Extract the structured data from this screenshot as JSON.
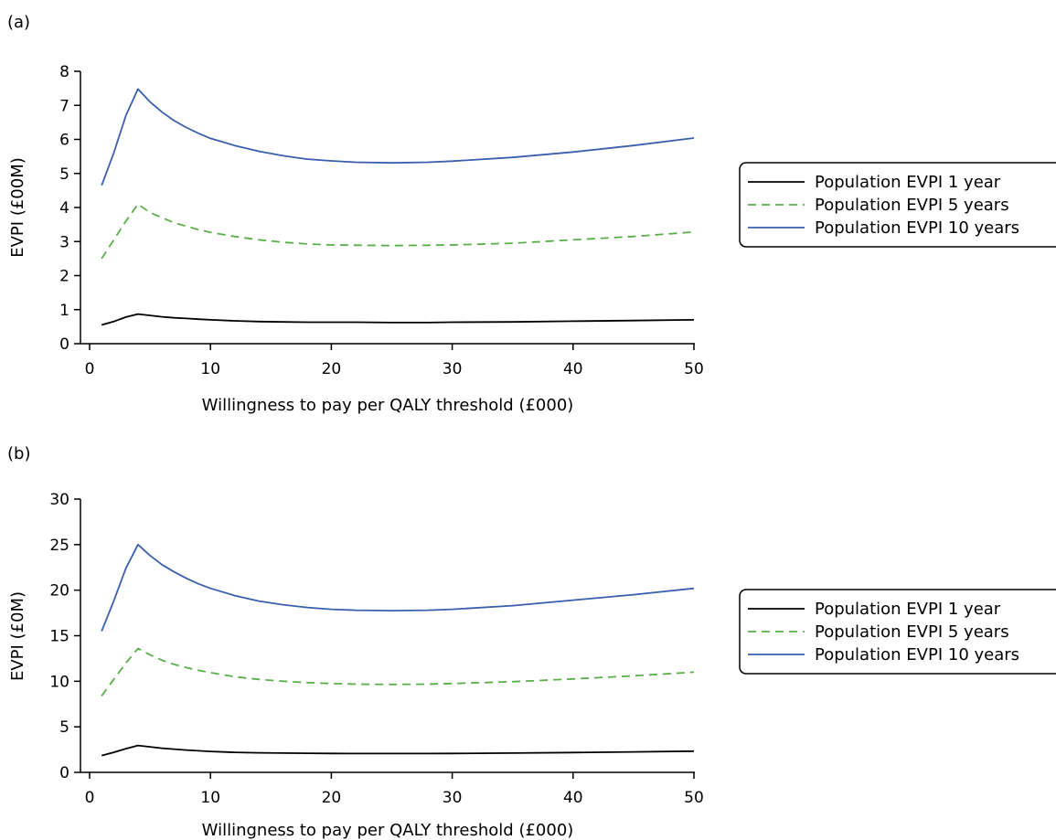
{
  "chart_data": [
    {
      "type": "line",
      "panel_label": "(a)",
      "xlabel": "Willingness to pay per QALY threshold (£000)",
      "ylabel": "EVPI (£00M)",
      "xlim": [
        0,
        50
      ],
      "ylim": [
        0,
        8
      ],
      "xticks": [
        "0",
        "10",
        "20",
        "30",
        "40",
        "50"
      ],
      "yticks": [
        "0",
        "1",
        "2",
        "3",
        "4",
        "5",
        "6",
        "7",
        "8"
      ],
      "grid": false,
      "legend_position": "right",
      "x": [
        1,
        2,
        3,
        4,
        5,
        6,
        7,
        8,
        9,
        10,
        12,
        14,
        16,
        18,
        20,
        22,
        25,
        28,
        30,
        35,
        40,
        45,
        50
      ],
      "series": [
        {
          "name": "Population EVPI 1 year",
          "color": "#000000",
          "dash": "solid",
          "values": [
            0.55,
            0.65,
            0.78,
            0.87,
            0.83,
            0.79,
            0.76,
            0.74,
            0.72,
            0.7,
            0.67,
            0.65,
            0.64,
            0.63,
            0.63,
            0.63,
            0.62,
            0.62,
            0.63,
            0.64,
            0.66,
            0.68,
            0.7
          ]
        },
        {
          "name": "Population EVPI 5 years",
          "color": "#5aae4a",
          "dash": "dashed",
          "values": [
            2.5,
            3.05,
            3.6,
            4.1,
            3.85,
            3.7,
            3.55,
            3.45,
            3.35,
            3.27,
            3.15,
            3.05,
            2.98,
            2.93,
            2.9,
            2.89,
            2.88,
            2.89,
            2.9,
            2.95,
            3.05,
            3.15,
            3.28
          ]
        },
        {
          "name": "Population EVPI 10 years",
          "color": "#3a5fad",
          "dash": "solid",
          "values": [
            4.65,
            5.6,
            6.7,
            7.48,
            7.1,
            6.8,
            6.55,
            6.35,
            6.18,
            6.03,
            5.82,
            5.65,
            5.52,
            5.42,
            5.37,
            5.33,
            5.31,
            5.33,
            5.36,
            5.47,
            5.63,
            5.82,
            6.04
          ]
        }
      ]
    },
    {
      "type": "line",
      "panel_label": "(b)",
      "xlabel": "Willingness to pay per QALY threshold (£000)",
      "ylabel": "EVPI (£0M)",
      "xlim": [
        0,
        50
      ],
      "ylim": [
        0,
        30
      ],
      "xticks": [
        "0",
        "10",
        "20",
        "30",
        "40",
        "50"
      ],
      "yticks": [
        "0",
        "5",
        "10",
        "15",
        "20",
        "25",
        "30"
      ],
      "grid": false,
      "legend_position": "right",
      "x": [
        1,
        2,
        3,
        4,
        5,
        6,
        7,
        8,
        9,
        10,
        12,
        14,
        16,
        18,
        20,
        22,
        25,
        28,
        30,
        35,
        40,
        45,
        50
      ],
      "series": [
        {
          "name": "Population EVPI 1 year",
          "color": "#000000",
          "dash": "solid",
          "values": [
            1.85,
            2.2,
            2.6,
            2.95,
            2.8,
            2.65,
            2.55,
            2.45,
            2.37,
            2.3,
            2.2,
            2.15,
            2.12,
            2.1,
            2.08,
            2.07,
            2.07,
            2.07,
            2.08,
            2.12,
            2.18,
            2.25,
            2.33
          ]
        },
        {
          "name": "Population EVPI 5 years",
          "color": "#5aae4a",
          "dash": "dashed",
          "values": [
            8.4,
            10.2,
            12.0,
            13.6,
            12.9,
            12.3,
            11.85,
            11.5,
            11.2,
            10.95,
            10.5,
            10.2,
            10.0,
            9.85,
            9.75,
            9.68,
            9.65,
            9.68,
            9.75,
            9.95,
            10.25,
            10.6,
            11.0
          ]
        },
        {
          "name": "Population EVPI 10 years",
          "color": "#3a5fad",
          "dash": "solid",
          "values": [
            15.5,
            18.8,
            22.4,
            25.0,
            23.8,
            22.8,
            22.0,
            21.3,
            20.7,
            20.2,
            19.4,
            18.8,
            18.4,
            18.1,
            17.9,
            17.8,
            17.75,
            17.8,
            17.9,
            18.3,
            18.9,
            19.5,
            20.2
          ]
        }
      ]
    }
  ]
}
